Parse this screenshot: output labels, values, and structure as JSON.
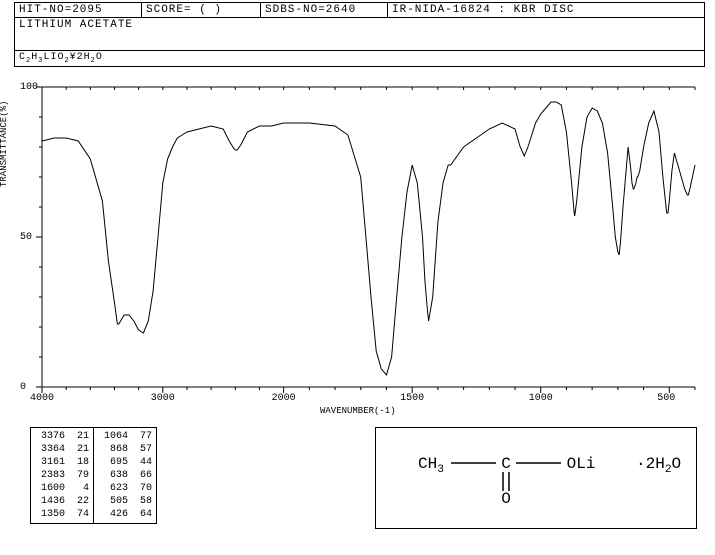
{
  "header": {
    "hit_no": "HIT-NO=2095",
    "score": "SCORE=   (   )",
    "sdbs_no": "SDBS-NO=2640",
    "ir_info": "IR-NIDA-16824  :  KBR DISC",
    "compound": "LITHIUM ACETATE",
    "formula_html": "C<sub>2</sub>H<sub>3</sub>LIO<sub>2</sub>¥2H<sub>2</sub>O"
  },
  "chart": {
    "type": "line",
    "xlabel": "WAVENUMBER(-1)",
    "ylabel": "TRANSMITTANCE(%)",
    "xlim": [
      4000,
      400
    ],
    "ylim": [
      0,
      100
    ],
    "xtick_major": [
      4000,
      3000,
      2000,
      1500,
      1000,
      500
    ],
    "ytick_major": [
      0,
      50,
      100
    ],
    "line_color": "#000000",
    "line_width": 1,
    "background_color": "#ffffff",
    "tick_fontsize": 10,
    "label_fontsize": 9,
    "data_points": [
      [
        4000,
        82
      ],
      [
        3900,
        83
      ],
      [
        3800,
        83
      ],
      [
        3700,
        82
      ],
      [
        3600,
        76
      ],
      [
        3500,
        62
      ],
      [
        3450,
        42
      ],
      [
        3400,
        28
      ],
      [
        3376,
        21
      ],
      [
        3364,
        21
      ],
      [
        3320,
        24
      ],
      [
        3280,
        24
      ],
      [
        3240,
        22
      ],
      [
        3200,
        19
      ],
      [
        3161,
        18
      ],
      [
        3120,
        22
      ],
      [
        3080,
        32
      ],
      [
        3040,
        50
      ],
      [
        3000,
        68
      ],
      [
        2960,
        76
      ],
      [
        2920,
        80
      ],
      [
        2880,
        83
      ],
      [
        2840,
        84
      ],
      [
        2800,
        85
      ],
      [
        2700,
        86
      ],
      [
        2600,
        87
      ],
      [
        2500,
        86
      ],
      [
        2450,
        82
      ],
      [
        2420,
        80
      ],
      [
        2400,
        79
      ],
      [
        2383,
        79
      ],
      [
        2350,
        81
      ],
      [
        2300,
        85
      ],
      [
        2200,
        87
      ],
      [
        2100,
        87
      ],
      [
        2000,
        88
      ],
      [
        1900,
        88
      ],
      [
        1800,
        87
      ],
      [
        1750,
        84
      ],
      [
        1700,
        70
      ],
      [
        1680,
        50
      ],
      [
        1660,
        30
      ],
      [
        1640,
        12
      ],
      [
        1620,
        6
      ],
      [
        1600,
        4
      ],
      [
        1580,
        10
      ],
      [
        1560,
        30
      ],
      [
        1540,
        50
      ],
      [
        1520,
        65
      ],
      [
        1500,
        74
      ],
      [
        1480,
        68
      ],
      [
        1460,
        50
      ],
      [
        1450,
        35
      ],
      [
        1440,
        25
      ],
      [
        1436,
        22
      ],
      [
        1420,
        30
      ],
      [
        1400,
        55
      ],
      [
        1380,
        68
      ],
      [
        1360,
        74
      ],
      [
        1350,
        74
      ],
      [
        1300,
        80
      ],
      [
        1250,
        83
      ],
      [
        1200,
        86
      ],
      [
        1150,
        88
      ],
      [
        1100,
        86
      ],
      [
        1080,
        80
      ],
      [
        1064,
        77
      ],
      [
        1050,
        80
      ],
      [
        1020,
        88
      ],
      [
        1000,
        91
      ],
      [
        980,
        93
      ],
      [
        960,
        95
      ],
      [
        940,
        95
      ],
      [
        920,
        94
      ],
      [
        900,
        85
      ],
      [
        880,
        68
      ],
      [
        870,
        58
      ],
      [
        868,
        57
      ],
      [
        860,
        62
      ],
      [
        840,
        80
      ],
      [
        820,
        90
      ],
      [
        800,
        93
      ],
      [
        780,
        92
      ],
      [
        760,
        88
      ],
      [
        740,
        78
      ],
      [
        720,
        60
      ],
      [
        710,
        50
      ],
      [
        700,
        45
      ],
      [
        695,
        44
      ],
      [
        690,
        48
      ],
      [
        680,
        60
      ],
      [
        660,
        80
      ],
      [
        650,
        73
      ],
      [
        645,
        68
      ],
      [
        640,
        66
      ],
      [
        638,
        66
      ],
      [
        630,
        68
      ],
      [
        625,
        70
      ],
      [
        623,
        70
      ],
      [
        615,
        72
      ],
      [
        600,
        80
      ],
      [
        580,
        88
      ],
      [
        560,
        92
      ],
      [
        540,
        85
      ],
      [
        525,
        70
      ],
      [
        515,
        62
      ],
      [
        510,
        58
      ],
      [
        505,
        58
      ],
      [
        500,
        62
      ],
      [
        490,
        72
      ],
      [
        480,
        78
      ],
      [
        460,
        72
      ],
      [
        440,
        66
      ],
      [
        430,
        64
      ],
      [
        426,
        64
      ],
      [
        420,
        66
      ],
      [
        410,
        70
      ],
      [
        400,
        74
      ]
    ]
  },
  "peak_table": {
    "col1": [
      {
        "wn": 3376,
        "t": 21
      },
      {
        "wn": 3364,
        "t": 21
      },
      {
        "wn": 3161,
        "t": 18
      },
      {
        "wn": 2383,
        "t": 79
      },
      {
        "wn": 1600,
        "t": 4
      },
      {
        "wn": 1436,
        "t": 22
      },
      {
        "wn": 1350,
        "t": 74
      }
    ],
    "col2": [
      {
        "wn": 1064,
        "t": 77
      },
      {
        "wn": 868,
        "t": 57
      },
      {
        "wn": 695,
        "t": 44
      },
      {
        "wn": 638,
        "t": 66
      },
      {
        "wn": 623,
        "t": 70
      },
      {
        "wn": 505,
        "t": 58
      },
      {
        "wn": 426,
        "t": 64
      }
    ]
  },
  "structure": {
    "ch3": "CH",
    "ch3_sub": "3",
    "c": "C",
    "o_double": "O",
    "oli": "OLi",
    "hydrate": "·2H",
    "hydrate_sub": "2",
    "hydrate_o": "O",
    "font_size": 16,
    "line_color": "#000000"
  }
}
